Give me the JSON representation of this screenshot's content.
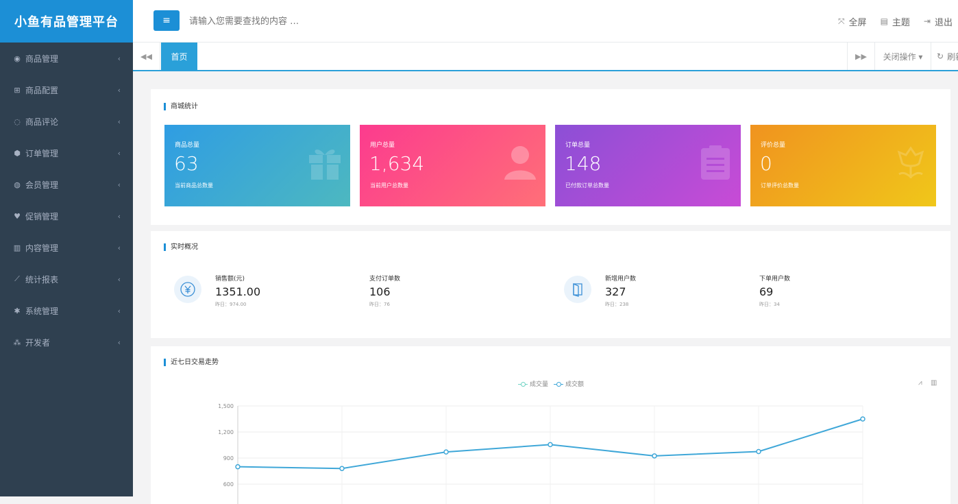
{
  "app": {
    "title": "小鱼有品管理平台"
  },
  "sidebar": {
    "items": [
      {
        "label": "商品管理",
        "icon": "cube-icon",
        "glyph": "◉"
      },
      {
        "label": "商品配置",
        "icon": "cart-icon",
        "glyph": "⊞"
      },
      {
        "label": "商品评论",
        "icon": "comments-icon",
        "glyph": "◌"
      },
      {
        "label": "订单管理",
        "icon": "box-icon",
        "glyph": "⬢"
      },
      {
        "label": "会员管理",
        "icon": "user-circle-icon",
        "glyph": "◍"
      },
      {
        "label": "促销管理",
        "icon": "heartbeat-icon",
        "glyph": "♥"
      },
      {
        "label": "内容管理",
        "icon": "book-icon",
        "glyph": "▥"
      },
      {
        "label": "统计报表",
        "icon": "line-chart-icon",
        "glyph": "⟋"
      },
      {
        "label": "系统管理",
        "icon": "gear-icon",
        "glyph": "✱"
      },
      {
        "label": "开发者",
        "icon": "cubes-icon",
        "glyph": "⁂"
      }
    ]
  },
  "header": {
    "search_placeholder": "请输入您需要查找的内容 …",
    "fullscreen_label": "全屏",
    "theme_label": "主题",
    "logout_label": "退出"
  },
  "tabs": {
    "active_label": "首页",
    "close_ops_label": "关闭操作 ▾",
    "refresh_label": "刷新"
  },
  "store_stats": {
    "title": "商城统计",
    "cards": [
      {
        "label": "商品总量",
        "value": "63",
        "sub": "当前商品总数量",
        "icon": "gift-icon"
      },
      {
        "label": "用户总量",
        "value": "1,634",
        "sub": "当前用户总数量",
        "icon": "user-icon"
      },
      {
        "label": "订单总量",
        "value": "148",
        "sub": "已付款订单总数量",
        "icon": "clipboard-icon"
      },
      {
        "label": "评价总量",
        "value": "0",
        "sub": "订单评价总数量",
        "icon": "flower-icon"
      }
    ]
  },
  "realtime": {
    "title": "实时概况",
    "items": [
      {
        "label": "销售额(元)",
        "value": "1351.00",
        "prev": "昨日：974.00"
      },
      {
        "label": "支付订单数",
        "value": "106",
        "prev": "昨日：76"
      },
      {
        "label": "新增用户数",
        "value": "327",
        "prev": "昨日：238"
      },
      {
        "label": "下单用户数",
        "value": "69",
        "prev": "昨日：34"
      }
    ]
  },
  "trend": {
    "title": "近七日交易走势"
  },
  "chart_data": {
    "type": "line",
    "legend": [
      "成交量",
      "成交额"
    ],
    "legend_position": "top-center",
    "series": [
      {
        "name": "成交额",
        "values": [
          800,
          780,
          970,
          1055,
          925,
          975,
          1350
        ]
      }
    ],
    "y_ticks": [
      "1,500",
      "1,200",
      "900",
      "600"
    ],
    "ylim": [
      600,
      1500
    ],
    "grid": true
  }
}
